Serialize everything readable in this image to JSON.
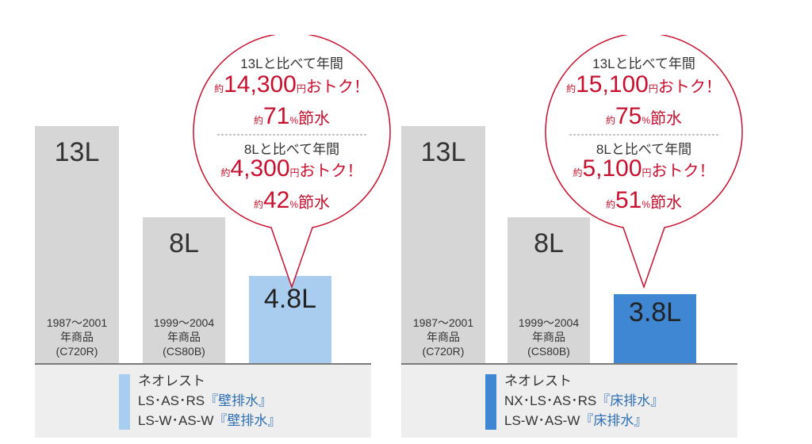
{
  "chart_data": [
    {
      "type": "bar",
      "categories": [
        "C720R",
        "CS80B",
        "ネオレスト"
      ],
      "values": [
        13,
        8,
        4.8
      ],
      "bars": [
        {
          "label": "13L",
          "note": [
            "1987〜2001",
            "年商品",
            "(C720R)"
          ]
        },
        {
          "label": "8L",
          "note": [
            "1999〜2004",
            "年商品",
            "(CS80B)"
          ]
        },
        {
          "label": "4.8L",
          "note": []
        }
      ],
      "highlight_color": "#a9cdee",
      "bubble": {
        "vs13_head": "13Lと比べて年間",
        "vs13_money_prefix": "約",
        "vs13_money": "14,300",
        "vs13_money_suffix": "円おトク！",
        "vs13_save_prefix": "約",
        "vs13_save": "71",
        "vs13_save_suffix": "%節水",
        "vs8_head": "8Lと比べて年間",
        "vs8_money_prefix": "約",
        "vs8_money": "4,300",
        "vs8_money_suffix": "円おトク！",
        "vs8_save_prefix": "約",
        "vs8_save": "42",
        "vs8_save_suffix": "%節水"
      },
      "footer": {
        "line1": "ネオレスト",
        "line2_main": "LS･AS･RS",
        "line2_hl": "『壁排水』",
        "line3_main": "LS-W･AS-W",
        "line3_hl": "『壁排水』"
      }
    },
    {
      "type": "bar",
      "categories": [
        "C720R",
        "CS80B",
        "ネオレスト"
      ],
      "values": [
        13,
        8,
        3.8
      ],
      "bars": [
        {
          "label": "13L",
          "note": [
            "1987〜2001",
            "年商品",
            "(C720R)"
          ]
        },
        {
          "label": "8L",
          "note": [
            "1999〜2004",
            "年商品",
            "(CS80B)"
          ]
        },
        {
          "label": "3.8L",
          "note": []
        }
      ],
      "highlight_color": "#3f87d3",
      "bubble": {
        "vs13_head": "13Lと比べて年間",
        "vs13_money_prefix": "約",
        "vs13_money": "15,100",
        "vs13_money_suffix": "円おトク！",
        "vs13_save_prefix": "約",
        "vs13_save": "75",
        "vs13_save_suffix": "%節水",
        "vs8_head": "8Lと比べて年間",
        "vs8_money_prefix": "約",
        "vs8_money": "5,100",
        "vs8_money_suffix": "円おトク！",
        "vs8_save_prefix": "約",
        "vs8_save": "51",
        "vs8_save_suffix": "%節水"
      },
      "footer": {
        "line1": "ネオレスト",
        "line2_main": "NX･LS･AS･RS",
        "line2_hl": "『床排水』",
        "line3_main": "LS-W･AS-W",
        "line3_hl": "『床排水』"
      }
    }
  ]
}
